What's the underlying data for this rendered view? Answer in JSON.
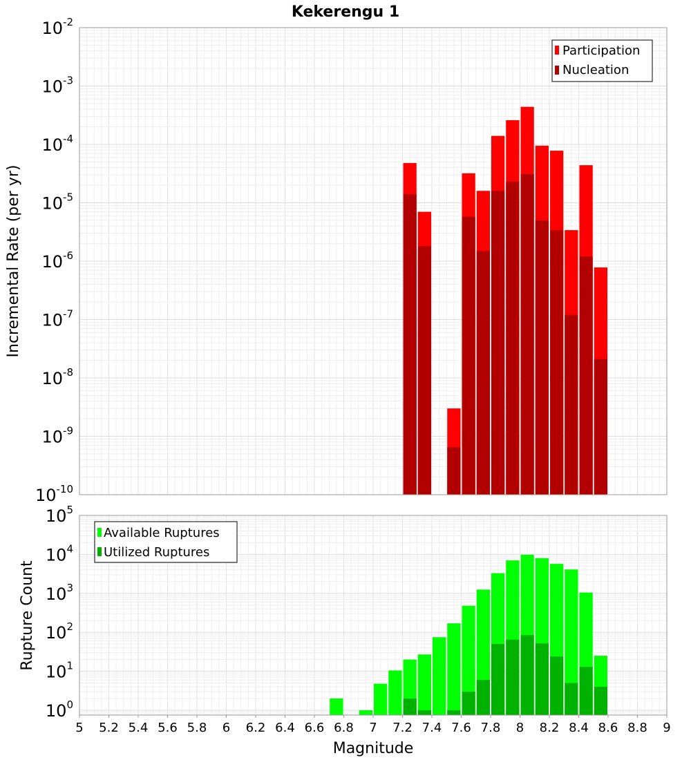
{
  "chart_data": [
    {
      "type": "bar",
      "title": "Kekerengu 1",
      "xlabel": "",
      "ylabel": "Incremental Rate (per yr)",
      "y_scale": "log",
      "xlim": [
        5,
        9
      ],
      "ylim": [
        1e-10,
        0.01
      ],
      "y_ticks": [
        {
          "base": "10",
          "exp": "-10",
          "value": 1e-10
        },
        {
          "base": "10",
          "exp": "-9",
          "value": 1e-09
        },
        {
          "base": "10",
          "exp": "-8",
          "value": 1e-08
        },
        {
          "base": "10",
          "exp": "-7",
          "value": 1e-07
        },
        {
          "base": "10",
          "exp": "-6",
          "value": 1e-06
        },
        {
          "base": "10",
          "exp": "-5",
          "value": 1e-05
        },
        {
          "base": "10",
          "exp": "-4",
          "value": 0.0001
        },
        {
          "base": "10",
          "exp": "-3",
          "value": 0.001
        },
        {
          "base": "10",
          "exp": "-2",
          "value": 0.01
        }
      ],
      "grid": true,
      "legend_position": "top-right",
      "bar_width": 0.1,
      "series": [
        {
          "name": "Participation",
          "color": "#ff0000",
          "points": [
            {
              "x": 7.25,
              "y": 4.8e-05
            },
            {
              "x": 7.35,
              "y": 7e-06
            },
            {
              "x": 7.55,
              "y": 3e-09
            },
            {
              "x": 7.65,
              "y": 3.2e-05
            },
            {
              "x": 7.75,
              "y": 1.6e-05
            },
            {
              "x": 7.85,
              "y": 0.00014
            },
            {
              "x": 7.95,
              "y": 0.00026
            },
            {
              "x": 8.05,
              "y": 0.00044
            },
            {
              "x": 8.15,
              "y": 9.5e-05
            },
            {
              "x": 8.25,
              "y": 7.8e-05
            },
            {
              "x": 8.35,
              "y": 3.4e-06
            },
            {
              "x": 8.45,
              "y": 4.4e-05
            },
            {
              "x": 8.55,
              "y": 7.8e-07
            }
          ]
        },
        {
          "name": "Nucleation",
          "color": "#b20000",
          "points": [
            {
              "x": 7.25,
              "y": 1.4e-05
            },
            {
              "x": 7.35,
              "y": 1.8e-06
            },
            {
              "x": 7.55,
              "y": 6.5e-10
            },
            {
              "x": 7.65,
              "y": 5.8e-06
            },
            {
              "x": 7.75,
              "y": 1.5e-06
            },
            {
              "x": 7.85,
              "y": 1.6e-05
            },
            {
              "x": 7.95,
              "y": 2.3e-05
            },
            {
              "x": 8.05,
              "y": 3.1e-05
            },
            {
              "x": 8.15,
              "y": 5e-06
            },
            {
              "x": 8.25,
              "y": 3.4e-06
            },
            {
              "x": 8.35,
              "y": 1.2e-07
            },
            {
              "x": 8.45,
              "y": 1.2e-06
            },
            {
              "x": 8.55,
              "y": 2.1e-08
            }
          ]
        }
      ]
    },
    {
      "type": "bar",
      "title": "",
      "xlabel": "Magnitude",
      "ylabel": "Rupture Count",
      "y_scale": "log",
      "xlim": [
        5,
        9
      ],
      "ylim": [
        0.75,
        100000.0
      ],
      "x_ticks": [
        "5",
        "5.2",
        "5.4",
        "5.6",
        "5.8",
        "6",
        "6.2",
        "6.4",
        "6.6",
        "6.8",
        "7",
        "7.2",
        "7.4",
        "7.6",
        "7.8",
        "8",
        "8.2",
        "8.4",
        "8.6",
        "8.8",
        "9"
      ],
      "y_ticks": [
        {
          "base": "10",
          "exp": "0",
          "value": 1
        },
        {
          "base": "10",
          "exp": "1",
          "value": 10
        },
        {
          "base": "10",
          "exp": "2",
          "value": 100
        },
        {
          "base": "10",
          "exp": "3",
          "value": 1000
        },
        {
          "base": "10",
          "exp": "4",
          "value": 10000
        },
        {
          "base": "10",
          "exp": "5",
          "value": 100000
        }
      ],
      "grid": true,
      "legend_position": "top-left",
      "bar_width": 0.1,
      "series": [
        {
          "name": "Available Ruptures",
          "color": "#00ff00",
          "points": [
            {
              "x": 6.75,
              "y": 2
            },
            {
              "x": 6.95,
              "y": 1
            },
            {
              "x": 7.05,
              "y": 4.8
            },
            {
              "x": 7.15,
              "y": 10.5
            },
            {
              "x": 7.25,
              "y": 20
            },
            {
              "x": 7.35,
              "y": 27
            },
            {
              "x": 7.45,
              "y": 75
            },
            {
              "x": 7.55,
              "y": 170
            },
            {
              "x": 7.65,
              "y": 480
            },
            {
              "x": 7.75,
              "y": 1250
            },
            {
              "x": 7.85,
              "y": 3300
            },
            {
              "x": 7.95,
              "y": 7000
            },
            {
              "x": 8.05,
              "y": 9800
            },
            {
              "x": 8.15,
              "y": 8000
            },
            {
              "x": 8.25,
              "y": 5700
            },
            {
              "x": 8.35,
              "y": 4100
            },
            {
              "x": 8.45,
              "y": 1050
            },
            {
              "x": 8.55,
              "y": 25
            }
          ]
        },
        {
          "name": "Utilized Ruptures",
          "color": "#00b200",
          "points": [
            {
              "x": 7.25,
              "y": 2
            },
            {
              "x": 7.35,
              "y": 1
            },
            {
              "x": 7.55,
              "y": 1
            },
            {
              "x": 7.65,
              "y": 3
            },
            {
              "x": 7.75,
              "y": 6
            },
            {
              "x": 7.85,
              "y": 50
            },
            {
              "x": 7.95,
              "y": 65
            },
            {
              "x": 8.05,
              "y": 85
            },
            {
              "x": 8.15,
              "y": 52
            },
            {
              "x": 8.25,
              "y": 24
            },
            {
              "x": 8.35,
              "y": 5
            },
            {
              "x": 8.45,
              "y": 13
            },
            {
              "x": 8.55,
              "y": 4
            }
          ]
        }
      ]
    }
  ]
}
